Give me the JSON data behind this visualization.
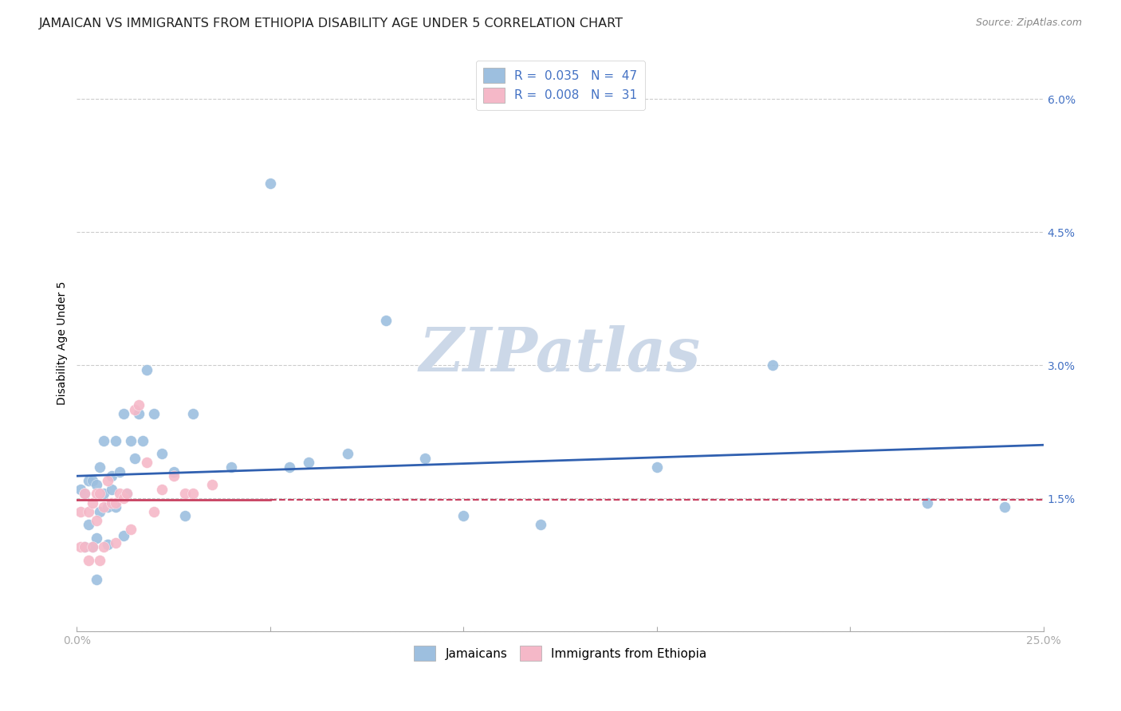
{
  "title": "JAMAICAN VS IMMIGRANTS FROM ETHIOPIA DISABILITY AGE UNDER 5 CORRELATION CHART",
  "source": "Source: ZipAtlas.com",
  "ylabel": "Disability Age Under 5",
  "xlim": [
    0.0,
    0.25
  ],
  "ylim": [
    0.0,
    0.065
  ],
  "xticks": [
    0.0,
    0.05,
    0.1,
    0.15,
    0.2,
    0.25
  ],
  "yticks": [
    0.0,
    0.015,
    0.03,
    0.045,
    0.06
  ],
  "watermark": "ZIPatlas",
  "jamaicans_x": [
    0.001,
    0.002,
    0.002,
    0.003,
    0.003,
    0.004,
    0.004,
    0.005,
    0.005,
    0.006,
    0.006,
    0.007,
    0.007,
    0.008,
    0.009,
    0.009,
    0.01,
    0.01,
    0.011,
    0.012,
    0.013,
    0.014,
    0.015,
    0.016,
    0.017,
    0.018,
    0.02,
    0.022,
    0.025,
    0.028,
    0.03,
    0.04,
    0.05,
    0.055,
    0.06,
    0.07,
    0.08,
    0.09,
    0.1,
    0.12,
    0.15,
    0.18,
    0.22,
    0.24,
    0.005,
    0.008,
    0.012
  ],
  "jamaicans_y": [
    0.016,
    0.0155,
    0.0095,
    0.017,
    0.012,
    0.017,
    0.0095,
    0.0165,
    0.0105,
    0.0185,
    0.0135,
    0.0215,
    0.0155,
    0.014,
    0.0175,
    0.016,
    0.0215,
    0.014,
    0.018,
    0.0245,
    0.0155,
    0.0215,
    0.0195,
    0.0245,
    0.0215,
    0.0295,
    0.0245,
    0.02,
    0.018,
    0.013,
    0.0245,
    0.0185,
    0.0505,
    0.0185,
    0.019,
    0.02,
    0.035,
    0.0195,
    0.013,
    0.012,
    0.0185,
    0.03,
    0.0145,
    0.014,
    0.0058,
    0.0098,
    0.0108
  ],
  "ethiopia_x": [
    0.001,
    0.001,
    0.002,
    0.002,
    0.003,
    0.003,
    0.004,
    0.004,
    0.005,
    0.005,
    0.006,
    0.006,
    0.007,
    0.007,
    0.008,
    0.009,
    0.01,
    0.01,
    0.011,
    0.012,
    0.013,
    0.014,
    0.015,
    0.016,
    0.018,
    0.02,
    0.022,
    0.025,
    0.028,
    0.03,
    0.035
  ],
  "ethiopia_y": [
    0.0095,
    0.0135,
    0.0095,
    0.0155,
    0.0135,
    0.008,
    0.0145,
    0.0095,
    0.0125,
    0.0155,
    0.008,
    0.0155,
    0.014,
    0.0095,
    0.017,
    0.0145,
    0.0145,
    0.01,
    0.0155,
    0.015,
    0.0155,
    0.0115,
    0.025,
    0.0255,
    0.019,
    0.0135,
    0.016,
    0.0175,
    0.0155,
    0.0155,
    0.0165
  ],
  "blue_line_x": [
    0.0,
    0.25
  ],
  "blue_line_y": [
    0.0175,
    0.021
  ],
  "pink_line_x": [
    0.0,
    0.25
  ],
  "pink_line_y": [
    0.0148,
    0.0148
  ],
  "blue_color": "#9dbfdf",
  "pink_color": "#f5b8c8",
  "blue_line_color": "#3060b0",
  "pink_line_color": "#c84060",
  "tick_label_color": "#4472c4",
  "grid_color": "#cccccc",
  "watermark_color": "#ccd8e8",
  "marker_size": 100,
  "title_fontsize": 11.5,
  "axis_label_fontsize": 10,
  "tick_fontsize": 10,
  "legend_fontsize": 11
}
